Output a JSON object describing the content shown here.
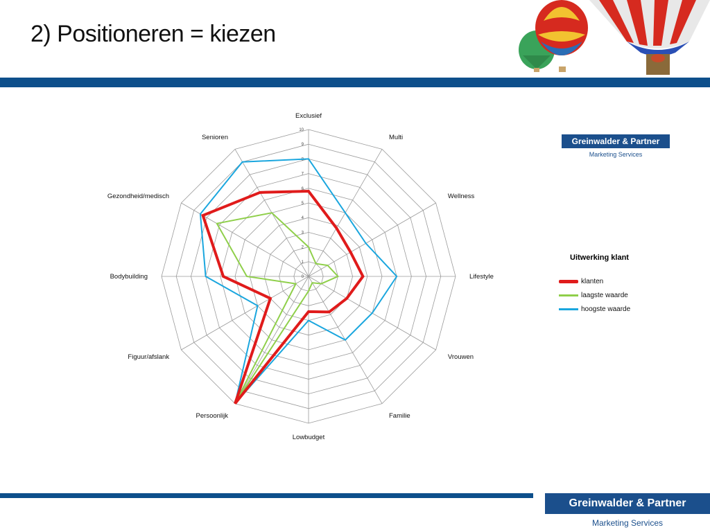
{
  "slide": {
    "title": "2) Positioneren = kiezen"
  },
  "colors": {
    "bar": "#0d4f8b",
    "klanten": "#e01b1b",
    "laagste": "#8fcf4a",
    "hoogste": "#1aa6de",
    "grid": "#9a9a9a",
    "logo_bg": "#1b4f8c",
    "logo_sub": "#1b4f8c"
  },
  "logo": {
    "name": "Greinwalder & Partner",
    "sub": "Marketing Services"
  },
  "chart_data": {
    "type": "radar",
    "categories": [
      "Exclusief",
      "Multi",
      "Wellness",
      "Lifestyle",
      "Vrouwen",
      "Familie",
      "Lowbudget",
      "Persoonlijk",
      "Figuur/afslank",
      "Bodybuilding",
      "Gezondheid/medisch",
      "Senioren"
    ],
    "scale_ticks": [
      "0",
      "1",
      "2",
      "3",
      "4",
      "5",
      "6",
      "7",
      "8",
      "9",
      "10"
    ],
    "rmax": 10,
    "legend_title": "Uitwerking klant",
    "legend_position": "right",
    "series": [
      {
        "name": "klanten",
        "values": [
          5.8,
          3.8,
          3.3,
          3.7,
          3.0,
          2.8,
          2.4,
          10,
          3.0,
          5.8,
          8.3,
          6.6
        ]
      },
      {
        "name": "laagste waarde",
        "values": [
          2.0,
          1.0,
          1.5,
          2.0,
          1.0,
          0.5,
          1.0,
          10,
          1.0,
          4.2,
          7.2,
          5.0
        ]
      },
      {
        "name": "hoogste waarde",
        "values": [
          8.0,
          5.0,
          4.5,
          6.0,
          5.0,
          5.0,
          3.0,
          10,
          4.0,
          7.0,
          8.5,
          9.0
        ]
      }
    ]
  }
}
